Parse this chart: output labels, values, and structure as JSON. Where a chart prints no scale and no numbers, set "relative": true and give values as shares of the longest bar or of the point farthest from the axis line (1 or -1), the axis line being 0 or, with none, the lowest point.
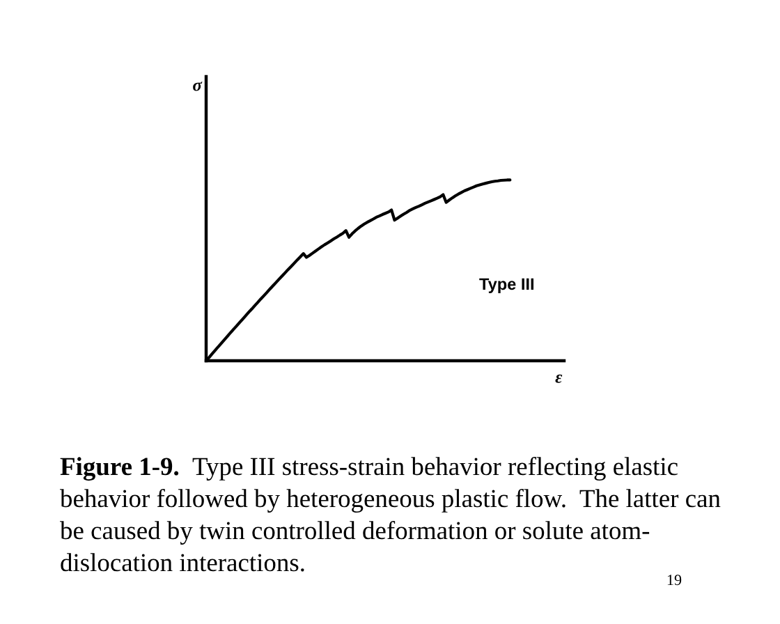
{
  "chart_data": {
    "type": "line",
    "relative": true,
    "xlabel": "ε",
    "categories": [
      null,
      null,
      null,
      null,
      null,
      null,
      null,
      null,
      null,
      null,
      null,
      null,
      null,
      null,
      null,
      null,
      null,
      null,
      null,
      null,
      null,
      null,
      null,
      null,
      null,
      null,
      null,
      null,
      null,
      null,
      null,
      null,
      null,
      null,
      null,
      null,
      null,
      null,
      null,
      null,
      null,
      null,
      null,
      null,
      null,
      null,
      null,
      null,
      null,
      null,
      null,
      null,
      null,
      null,
      null,
      null,
      null,
      null,
      null,
      null,
      null,
      null,
      null,
      null,
      null,
      null,
      null,
      null,
      null,
      null,
      null,
      null,
      null,
      null,
      null,
      null,
      null,
      null,
      null,
      null,
      null,
      null,
      null,
      null,
      null,
      null,
      null,
      null,
      null,
      null,
      null,
      null,
      null,
      null,
      null,
      null,
      null,
      null,
      null,
      null,
      null
    ],
    "series": [
      {
        "color": "#000000",
        "values": [
          0,
          0.019,
          0.039,
          0.058,
          0.078,
          0.097,
          0.116,
          0.135,
          0.155,
          0.174,
          0.192,
          0.211,
          0.23,
          0.249,
          0.268,
          0.286,
          0.305,
          0.323,
          0.342,
          0.36,
          0.378,
          0.397,
          0.415,
          0.433,
          0.451,
          0.469,
          0.487,
          0.505,
          0.522,
          0.54,
          0.558,
          0.575,
          0.593,
          0.572,
          0.583,
          0.595,
          0.607,
          0.619,
          0.631,
          0.642,
          0.652,
          0.663,
          0.674,
          0.684,
          0.695,
          0.705,
          0.72,
          0.683,
          0.702,
          0.718,
          0.732,
          0.745,
          0.756,
          0.766,
          0.775,
          0.784,
          0.794,
          0.801,
          0.809,
          0.816,
          0.823,
          0.834,
          0.778,
          0.789,
          0.8,
          0.811,
          0.821,
          0.832,
          0.84,
          0.848,
          0.855,
          0.863,
          0.871,
          0.878,
          0.885,
          0.892,
          0.899,
          0.907,
          0.919,
          0.876,
          0.889,
          0.901,
          0.912,
          0.922,
          0.931,
          0.94,
          0.947,
          0.954,
          0.961,
          0.968,
          0.973,
          0.978,
          0.982,
          0.986,
          0.99,
          0.993,
          0.995,
          0.998,
          0.999,
          1.0,
          1.0
        ]
      }
    ],
    "annotations": [
      "σ",
      "Type III",
      "Figure 1-9.",
      "Type III stress-strain behavior reflecting elastic",
      "behavior followed by heterogeneous plastic flow.  The latter can",
      "be caused by twin controlled deformation or solute atom-",
      "dislocation interactions.",
      "19"
    ]
  }
}
